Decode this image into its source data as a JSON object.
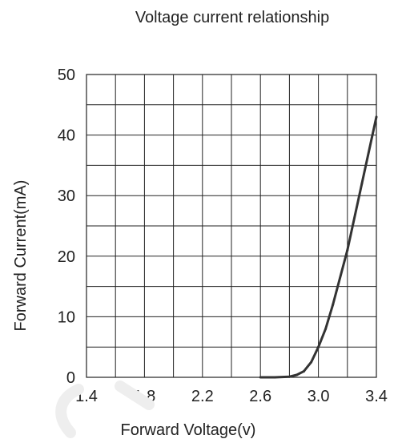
{
  "chart_data": {
    "type": "line",
    "title": "Voltage current relationship",
    "xlabel": "Forward Voltage(v)",
    "ylabel": "Forward Current(mA)",
    "xlim": [
      1.4,
      3.4
    ],
    "ylim": [
      0,
      50
    ],
    "x_tick_labels": [
      "1.4",
      "1.8",
      "2.2",
      "2.6",
      "3.0",
      "3.4"
    ],
    "x_tick_values": [
      1.4,
      1.8,
      2.2,
      2.6,
      3.0,
      3.4
    ],
    "y_tick_labels": [
      "0",
      "10",
      "20",
      "30",
      "40",
      "50"
    ],
    "y_tick_values": [
      0,
      10,
      20,
      30,
      40,
      50
    ],
    "grid": true,
    "grid_x_step": 0.2,
    "grid_y_step": 5,
    "series": [
      {
        "x": [
          2.6,
          2.7,
          2.8,
          2.85,
          2.9,
          2.95,
          3.0,
          3.05,
          3.1,
          3.2,
          3.3,
          3.4
        ],
        "y": [
          0,
          0,
          0.1,
          0.4,
          1.0,
          2.5,
          5.0,
          8.0,
          12.0,
          21.0,
          32.0,
          43.0
        ]
      }
    ],
    "colors": {
      "line": "#333333",
      "grid": "#222222",
      "text": "#222222"
    }
  }
}
